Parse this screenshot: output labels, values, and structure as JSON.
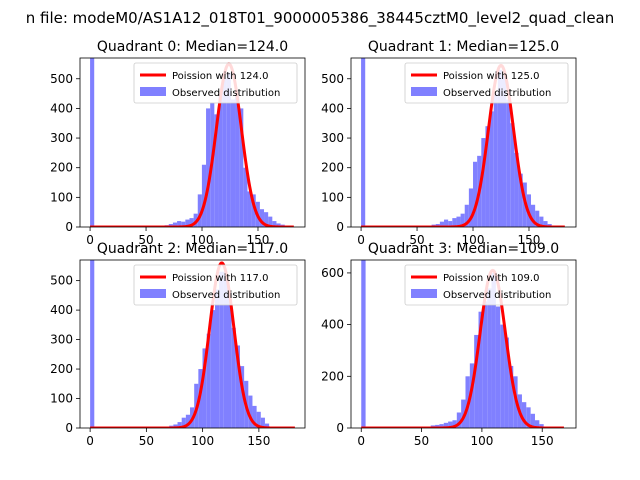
{
  "suptitle": "n file: modeM0/AS1A12_018T01_9000005386_38445cztM0_level2_quad_clean",
  "colors": {
    "hist": "#8080ff",
    "poisson": "#ff0000",
    "axes": "#000000",
    "background": "#ffffff"
  },
  "chart_data": [
    {
      "type": "bar",
      "title": "Quadrant 0: Median=124.0",
      "legend": {
        "placement": "top-right",
        "entries": [
          "Poission with 124.0",
          "Observed distribution"
        ]
      },
      "xlim": [
        -9,
        192
      ],
      "ylim": [
        0,
        570
      ],
      "xticks": [
        0,
        50,
        100,
        150
      ],
      "yticks": [
        0,
        100,
        200,
        300,
        400,
        500
      ],
      "grid": false,
      "series": [
        {
          "type": "histogram",
          "bin_width": 3.7,
          "bins": [
            [
              0,
              570
            ],
            [
              66.6,
              6
            ],
            [
              70.3,
              10
            ],
            [
              74,
              15
            ],
            [
              77.7,
              20
            ],
            [
              81.4,
              18
            ],
            [
              85.1,
              25
            ],
            [
              88.8,
              30
            ],
            [
              92.5,
              45
            ],
            [
              96.2,
              110
            ],
            [
              99.9,
              210
            ],
            [
              103.6,
              400
            ],
            [
              107.3,
              420
            ],
            [
              111,
              380
            ],
            [
              114.7,
              450
            ],
            [
              118.4,
              500
            ],
            [
              122.1,
              520
            ],
            [
              125.8,
              430
            ],
            [
              129.5,
              440
            ],
            [
              133.2,
              400
            ],
            [
              136.9,
              200
            ],
            [
              140.6,
              120
            ],
            [
              144.3,
              110
            ],
            [
              148,
              85
            ],
            [
              151.7,
              60
            ],
            [
              155.4,
              50
            ],
            [
              159.1,
              35
            ],
            [
              162.8,
              20
            ],
            [
              166.5,
              12
            ],
            [
              170.2,
              8
            ],
            [
              173.9,
              4
            ],
            [
              177.6,
              2
            ]
          ]
        },
        {
          "type": "line",
          "mean": 124.0,
          "peak": 550,
          "x_range": [
            0,
            182
          ]
        }
      ]
    },
    {
      "type": "bar",
      "title": "Quadrant 1: Median=125.0",
      "legend": {
        "placement": "top-right",
        "entries": [
          "Poission with 125.0",
          "Observed distribution"
        ]
      },
      "xlim": [
        -9,
        192
      ],
      "ylim": [
        0,
        570
      ],
      "xticks": [
        0,
        50,
        100,
        150
      ],
      "yticks": [
        0,
        100,
        200,
        300,
        400,
        500
      ],
      "grid": false,
      "series": [
        {
          "type": "histogram",
          "bin_width": 3.7,
          "bins": [
            [
              0,
              570
            ],
            [
              63,
              8
            ],
            [
              66.7,
              10
            ],
            [
              70.4,
              18
            ],
            [
              74.1,
              25
            ],
            [
              77.8,
              20
            ],
            [
              81.5,
              30
            ],
            [
              85.2,
              35
            ],
            [
              88.9,
              45
            ],
            [
              92.6,
              75
            ],
            [
              96.3,
              130
            ],
            [
              100,
              220
            ],
            [
              103.7,
              240
            ],
            [
              107.4,
              300
            ],
            [
              111.1,
              340
            ],
            [
              114.8,
              390
            ],
            [
              118.5,
              450
            ],
            [
              122.2,
              530
            ],
            [
              125.9,
              510
            ],
            [
              129.6,
              430
            ],
            [
              133.3,
              350
            ],
            [
              137,
              250
            ],
            [
              140.7,
              180
            ],
            [
              144.4,
              150
            ],
            [
              148.1,
              110
            ],
            [
              151.8,
              75
            ],
            [
              155.5,
              55
            ],
            [
              159.2,
              35
            ],
            [
              162.9,
              20
            ],
            [
              166.6,
              10
            ],
            [
              170.3,
              5
            ]
          ]
        },
        {
          "type": "line",
          "mean": 125.0,
          "peak": 545,
          "x_range": [
            0,
            182
          ]
        }
      ]
    },
    {
      "type": "bar",
      "title": "Quadrant 2: Median=117.0",
      "legend": {
        "placement": "top-right",
        "entries": [
          "Poission with 117.0",
          "Observed distribution"
        ]
      },
      "xlim": [
        -9,
        191
      ],
      "ylim": [
        0,
        570
      ],
      "xticks": [
        0,
        50,
        100,
        150
      ],
      "yticks": [
        0,
        100,
        200,
        300,
        400,
        500
      ],
      "grid": false,
      "series": [
        {
          "type": "histogram",
          "bin_width": 3.7,
          "bins": [
            [
              0,
              570
            ],
            [
              66.6,
              4
            ],
            [
              70.3,
              8
            ],
            [
              74,
              12
            ],
            [
              77.7,
              20
            ],
            [
              81.4,
              35
            ],
            [
              85.1,
              45
            ],
            [
              88.8,
              70
            ],
            [
              92.5,
              150
            ],
            [
              96.2,
              200
            ],
            [
              99.9,
              270
            ],
            [
              103.6,
              320
            ],
            [
              107.3,
              400
            ],
            [
              111,
              470
            ],
            [
              114.7,
              530
            ],
            [
              118.4,
              530
            ],
            [
              122.1,
              460
            ],
            [
              125.8,
              340
            ],
            [
              129.5,
              280
            ],
            [
              133.2,
              210
            ],
            [
              136.9,
              160
            ],
            [
              140.6,
              110
            ],
            [
              144.3,
              75
            ],
            [
              148,
              55
            ],
            [
              151.7,
              35
            ],
            [
              155.4,
              15
            ],
            [
              159.1,
              5
            ]
          ]
        },
        {
          "type": "line",
          "mean": 117.0,
          "peak": 560,
          "x_range": [
            0,
            182
          ]
        }
      ]
    },
    {
      "type": "bar",
      "title": "Quadrant 3: Median=109.0",
      "legend": {
        "placement": "top-right",
        "entries": [
          "Poission with 109.0",
          "Observed distribution"
        ]
      },
      "xlim": [
        -8.5,
        178
      ],
      "ylim": [
        0,
        650
      ],
      "xticks": [
        0,
        50,
        100,
        150
      ],
      "yticks": [
        0,
        200,
        400,
        600
      ],
      "grid": false,
      "series": [
        {
          "type": "histogram",
          "bin_width": 3.6,
          "bins": [
            [
              0,
              650
            ],
            [
              54,
              5
            ],
            [
              57.6,
              10
            ],
            [
              61.2,
              12
            ],
            [
              64.8,
              15
            ],
            [
              68.4,
              20
            ],
            [
              72,
              25
            ],
            [
              75.6,
              30
            ],
            [
              79.2,
              60
            ],
            [
              82.8,
              110
            ],
            [
              86.4,
              200
            ],
            [
              90,
              250
            ],
            [
              93.6,
              360
            ],
            [
              97.2,
              450
            ],
            [
              100.8,
              490
            ],
            [
              104.4,
              540
            ],
            [
              108,
              600
            ],
            [
              111.6,
              470
            ],
            [
              115.2,
              400
            ],
            [
              118.8,
              350
            ],
            [
              122.4,
              240
            ],
            [
              126,
              200
            ],
            [
              129.6,
              130
            ],
            [
              133.2,
              100
            ],
            [
              136.8,
              80
            ],
            [
              140.4,
              55
            ],
            [
              144,
              30
            ],
            [
              147.6,
              15
            ],
            [
              151.2,
              5
            ]
          ]
        },
        {
          "type": "line",
          "mean": 109.0,
          "peak": 610,
          "x_range": [
            0,
            168
          ]
        }
      ]
    }
  ]
}
